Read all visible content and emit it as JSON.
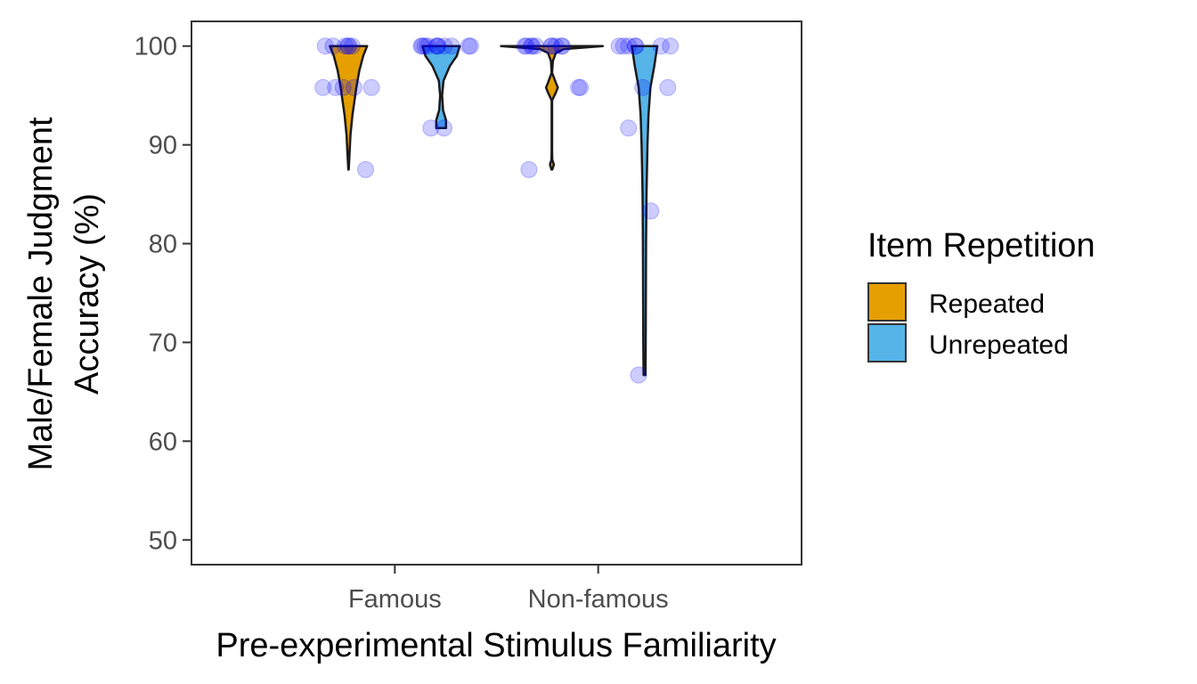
{
  "chart_data": {
    "type": "violin",
    "title": "",
    "xlabel": "Pre-experimental Stimulus Familiarity",
    "ylabel_lines": [
      "Male/Female Judgment",
      "Accuracy (%)"
    ],
    "categories": [
      "Famous",
      "Non-famous"
    ],
    "ylim": [
      47.5,
      102.5
    ],
    "yticks": [
      50,
      60,
      70,
      80,
      90,
      100
    ],
    "grid": false,
    "legend": {
      "title": "Item Repetition",
      "position": "right",
      "entries": [
        {
          "name": "Repeated",
          "color": "#E69F00"
        },
        {
          "name": "Unrepeated",
          "color": "#56B4E9"
        }
      ]
    },
    "point_color": "#0000ff",
    "series": [
      {
        "name": "Repeated",
        "color": "#E69F00",
        "groups": [
          {
            "category": "Famous",
            "points": [
              100,
              100,
              100,
              100,
              100,
              100,
              95.8,
              95.8,
              95.8,
              95.8,
              95.8,
              87.5
            ],
            "violin": [
              [
                87.5,
                0.01
              ],
              [
                89,
                0.05
              ],
              [
                91,
                0.1
              ],
              [
                93,
                0.2
              ],
              [
                95.8,
                0.4
              ],
              [
                97.5,
                0.55
              ],
              [
                99,
                0.75
              ],
              [
                100,
                0.95
              ]
            ]
          },
          {
            "category": "Non-famous",
            "points": [
              100,
              100,
              100,
              100,
              100,
              100,
              100,
              100,
              100,
              100,
              95.8,
              95.8,
              87.5
            ],
            "violin": [
              [
                87.5,
                0.02
              ],
              [
                88,
                0.1
              ],
              [
                88.5,
                0.02
              ],
              [
                89.5,
                0.01
              ],
              [
                94.5,
                0.01
              ],
              [
                95.3,
                0.2
              ],
              [
                95.8,
                0.3
              ],
              [
                96.3,
                0.2
              ],
              [
                97.3,
                0.01
              ],
              [
                98.5,
                0.05
              ],
              [
                99.3,
                0.2
              ],
              [
                99.7,
                0.6
              ],
              [
                100,
                2.6
              ]
            ]
          }
        ]
      },
      {
        "name": "Unrepeated",
        "color": "#56B4E9",
        "groups": [
          {
            "category": "Famous",
            "points": [
              100,
              100,
              100,
              100,
              100,
              100,
              100,
              100,
              100,
              100,
              100,
              91.7,
              91.7
            ],
            "violin": [
              [
                91.7,
                0.25
              ],
              [
                92.5,
                0.25
              ],
              [
                93.5,
                0.1
              ],
              [
                95,
                0.05
              ],
              [
                96.5,
                0.12
              ],
              [
                98,
                0.45
              ],
              [
                99,
                0.8
              ],
              [
                100,
                0.95
              ]
            ]
          },
          {
            "category": "Non-famous",
            "points": [
              100,
              100,
              100,
              100,
              100,
              100,
              100,
              95.8,
              95.8,
              91.7,
              83.3,
              66.7
            ],
            "violin": [
              [
                66.7,
                0.05
              ],
              [
                70,
                0.06
              ],
              [
                75,
                0.07
              ],
              [
                80,
                0.08
              ],
              [
                85,
                0.1
              ],
              [
                90,
                0.15
              ],
              [
                93,
                0.2
              ],
              [
                95.8,
                0.3
              ],
              [
                98,
                0.5
              ],
              [
                100,
                0.65
              ]
            ]
          }
        ]
      }
    ]
  }
}
